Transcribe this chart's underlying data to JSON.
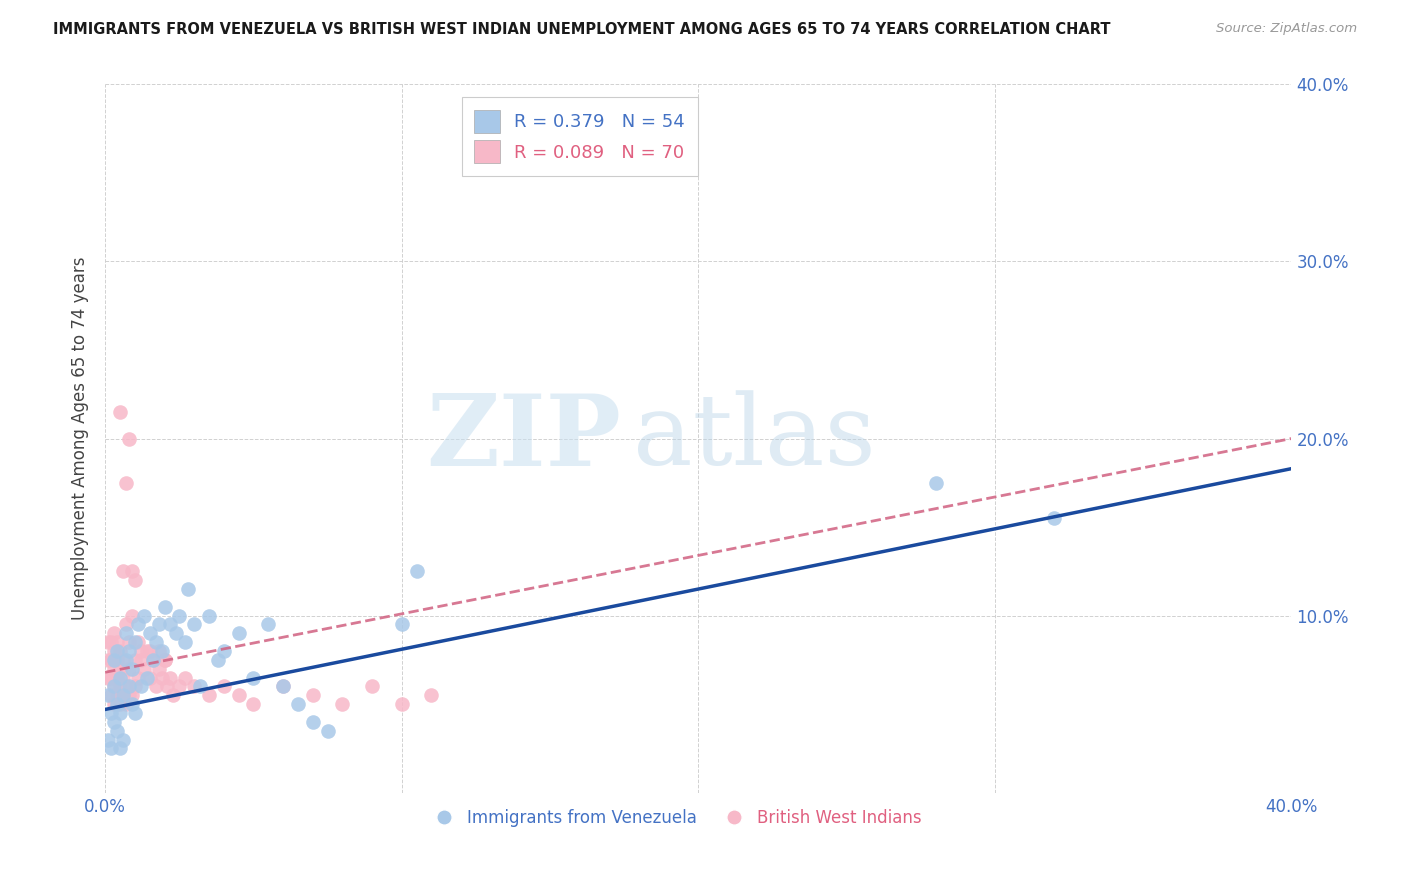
{
  "title": "IMMIGRANTS FROM VENEZUELA VS BRITISH WEST INDIAN UNEMPLOYMENT AMONG AGES 65 TO 74 YEARS CORRELATION CHART",
  "source": "Source: ZipAtlas.com",
  "ylabel": "Unemployment Among Ages 65 to 74 years",
  "xlim": [
    0.0,
    0.4
  ],
  "ylim": [
    0.0,
    0.4
  ],
  "ytick_values": [
    0.0,
    0.1,
    0.2,
    0.3,
    0.4
  ],
  "ytick_labels": [
    "",
    "10.0%",
    "20.0%",
    "30.0%",
    "40.0%"
  ],
  "xtick_values": [
    0.0,
    0.1,
    0.2,
    0.3,
    0.4
  ],
  "xtick_labels": [
    "0.0%",
    "",
    "",
    "",
    "40.0%"
  ],
  "watermark_zip": "ZIP",
  "watermark_atlas": "atlas",
  "legend1_label": "Immigrants from Venezuela",
  "legend2_label": "British West Indians",
  "series1_color": "#a8c8e8",
  "series1_line_color": "#1a4a9e",
  "series1_R": "0.379",
  "series1_N": "54",
  "series2_color": "#f7b8c8",
  "series2_line_color": "#d06080",
  "series2_R": "0.089",
  "series2_N": "70",
  "blue_x": [
    0.001,
    0.001,
    0.002,
    0.002,
    0.003,
    0.003,
    0.003,
    0.004,
    0.004,
    0.004,
    0.005,
    0.005,
    0.005,
    0.006,
    0.006,
    0.007,
    0.007,
    0.008,
    0.008,
    0.009,
    0.009,
    0.01,
    0.01,
    0.011,
    0.012,
    0.013,
    0.014,
    0.015,
    0.016,
    0.017,
    0.018,
    0.019,
    0.02,
    0.022,
    0.024,
    0.025,
    0.027,
    0.028,
    0.03,
    0.032,
    0.035,
    0.038,
    0.04,
    0.045,
    0.05,
    0.055,
    0.06,
    0.065,
    0.07,
    0.075,
    0.1,
    0.105,
    0.28,
    0.32
  ],
  "blue_y": [
    0.055,
    0.03,
    0.045,
    0.025,
    0.06,
    0.04,
    0.075,
    0.05,
    0.08,
    0.035,
    0.045,
    0.065,
    0.025,
    0.055,
    0.03,
    0.075,
    0.09,
    0.06,
    0.08,
    0.07,
    0.05,
    0.085,
    0.045,
    0.095,
    0.06,
    0.1,
    0.065,
    0.09,
    0.075,
    0.085,
    0.095,
    0.08,
    0.105,
    0.095,
    0.09,
    0.1,
    0.085,
    0.115,
    0.095,
    0.06,
    0.1,
    0.075,
    0.08,
    0.09,
    0.065,
    0.095,
    0.06,
    0.05,
    0.04,
    0.035,
    0.095,
    0.125,
    0.175,
    0.155
  ],
  "pink_x": [
    0.001,
    0.001,
    0.001,
    0.002,
    0.002,
    0.002,
    0.002,
    0.003,
    0.003,
    0.003,
    0.003,
    0.003,
    0.004,
    0.004,
    0.004,
    0.004,
    0.005,
    0.005,
    0.005,
    0.005,
    0.006,
    0.006,
    0.006,
    0.007,
    0.007,
    0.007,
    0.008,
    0.008,
    0.008,
    0.009,
    0.009,
    0.01,
    0.01,
    0.011,
    0.011,
    0.012,
    0.013,
    0.014,
    0.015,
    0.016,
    0.017,
    0.018,
    0.019,
    0.02,
    0.021,
    0.022,
    0.023,
    0.025,
    0.027,
    0.03,
    0.035,
    0.04,
    0.045,
    0.05,
    0.06,
    0.07,
    0.08,
    0.09,
    0.1,
    0.11,
    0.005,
    0.006,
    0.007,
    0.008,
    0.009,
    0.01,
    0.012,
    0.015,
    0.018,
    0.02
  ],
  "pink_y": [
    0.065,
    0.075,
    0.085,
    0.055,
    0.065,
    0.075,
    0.085,
    0.05,
    0.06,
    0.07,
    0.08,
    0.09,
    0.055,
    0.065,
    0.075,
    0.085,
    0.05,
    0.06,
    0.07,
    0.08,
    0.055,
    0.065,
    0.075,
    0.05,
    0.06,
    0.095,
    0.055,
    0.07,
    0.085,
    0.055,
    0.1,
    0.06,
    0.075,
    0.065,
    0.085,
    0.075,
    0.07,
    0.08,
    0.065,
    0.075,
    0.06,
    0.07,
    0.065,
    0.075,
    0.06,
    0.065,
    0.055,
    0.06,
    0.065,
    0.06,
    0.055,
    0.06,
    0.055,
    0.05,
    0.06,
    0.055,
    0.05,
    0.06,
    0.05,
    0.055,
    0.215,
    0.125,
    0.175,
    0.2,
    0.125,
    0.12,
    0.08,
    0.08,
    0.08,
    0.075
  ],
  "blue_line_x": [
    0.0,
    0.4
  ],
  "blue_line_y": [
    0.047,
    0.183
  ],
  "pink_line_x": [
    0.0,
    0.4
  ],
  "pink_line_y": [
    0.068,
    0.2
  ]
}
